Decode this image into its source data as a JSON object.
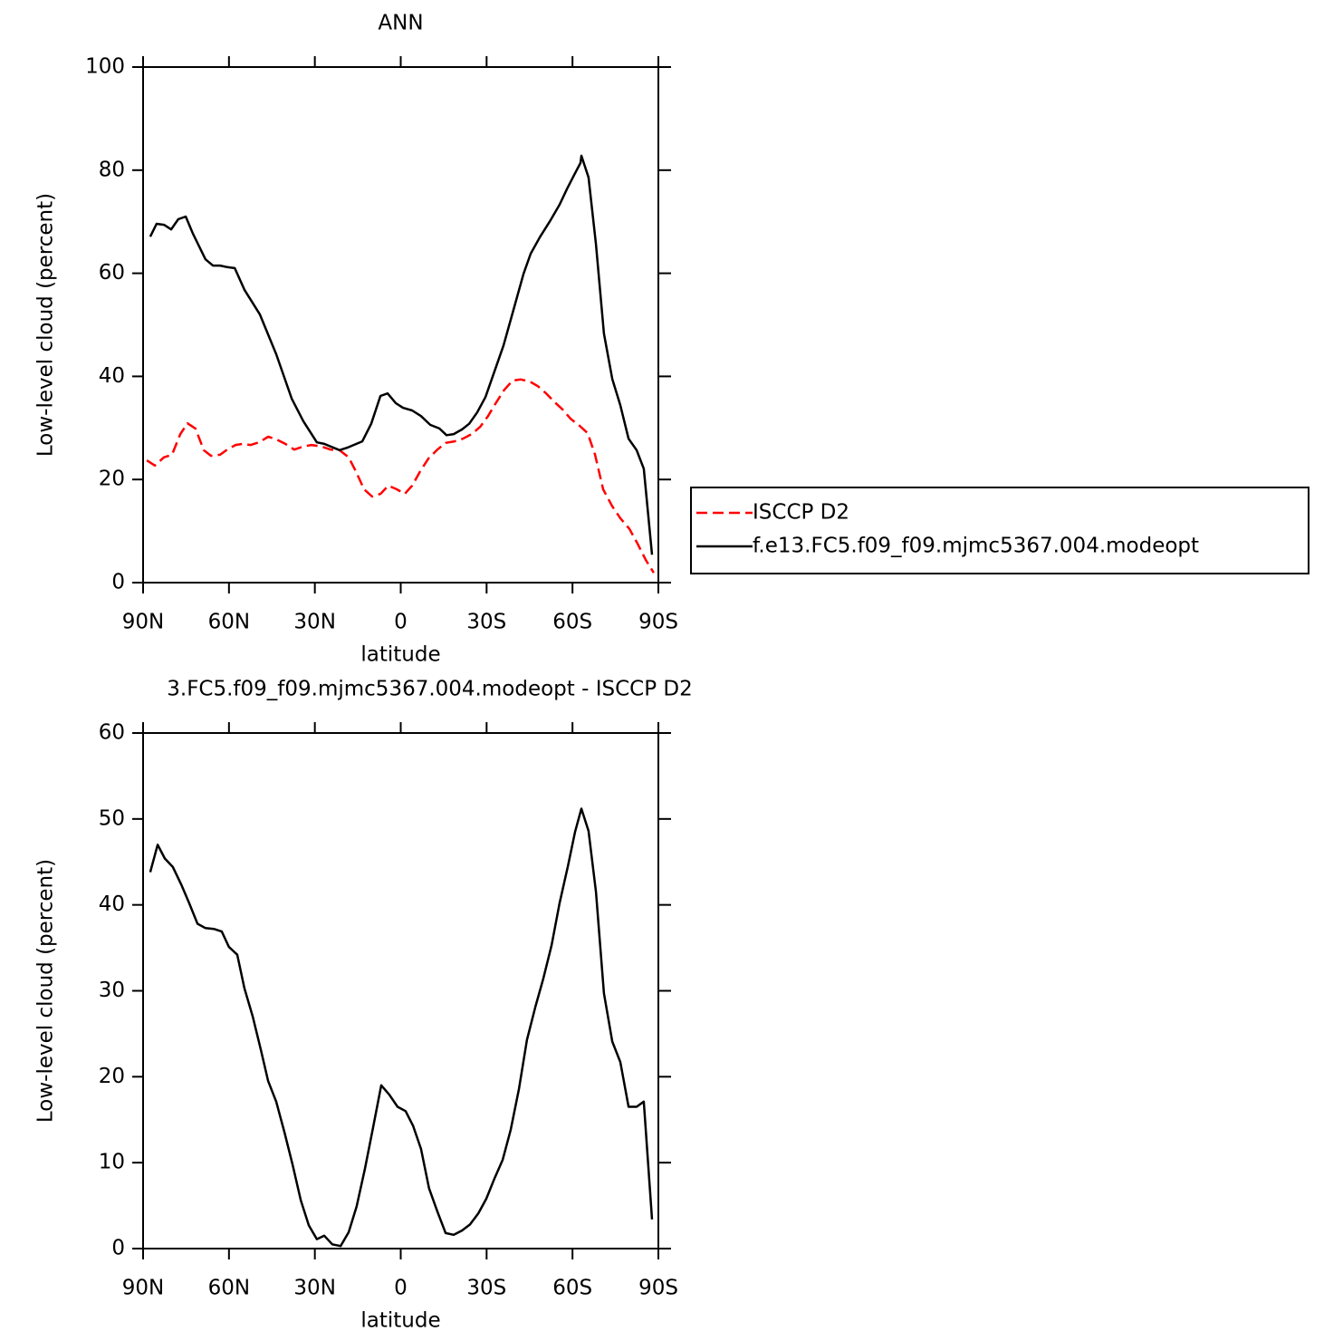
{
  "chart_data": [
    {
      "type": "line",
      "title": "ANN",
      "xlabel": "latitude",
      "ylabel": "Low-level cloud (percent)",
      "xlim": [
        90,
        -90
      ],
      "xticks": [
        {
          "value": 90,
          "label": "90N"
        },
        {
          "value": 60,
          "label": "60N"
        },
        {
          "value": 30,
          "label": "30N"
        },
        0,
        {
          "value": -30,
          "label": "30S"
        },
        {
          "value": -60,
          "label": "60S"
        },
        {
          "value": -90,
          "label": "90S"
        }
      ],
      "ylim": [
        0,
        100
      ],
      "yticks": [
        0,
        20,
        40,
        60,
        80,
        100
      ],
      "legend": "right",
      "series": [
        {
          "name": "ISCCP D2",
          "color": "#ff0000",
          "line_style": "dashed",
          "x": [
            88.7,
            85.9,
            82.7,
            79.9,
            77.0,
            74.5,
            71.7,
            68.8,
            66.3,
            63.1,
            60.6,
            57.7,
            55.2,
            52.4,
            49.5,
            46.3,
            43.5,
            40.3,
            37.2,
            34.0,
            31.2,
            27.7,
            24.5,
            21.4,
            18.2,
            15.7,
            12.8,
            10.0,
            7.1,
            4.3,
            1.4,
            -1.4,
            -4.0,
            -6.8,
            -9.7,
            -12.8,
            -15.7,
            -18.8,
            -21.7,
            -24.8,
            -27.7,
            -30.5,
            -33.4,
            -36.2,
            -39.1,
            -41.9,
            -45.1,
            -47.9,
            -50.8,
            -53.6,
            -56.5,
            -59.3,
            -62.5,
            -65.3,
            -67.9,
            -70.7,
            -73.9,
            -76.7,
            -79.9,
            -82.7,
            -85.6,
            -88.4
          ],
          "values": [
            23.7,
            22.7,
            24.3,
            24.8,
            28.8,
            30.9,
            29.9,
            25.7,
            24.6,
            24.8,
            25.8,
            26.7,
            26.9,
            26.7,
            27.2,
            28.3,
            27.8,
            26.9,
            25.8,
            26.4,
            26.7,
            26.4,
            25.8,
            25.7,
            24.3,
            21.6,
            18.1,
            16.7,
            17.2,
            18.8,
            18.1,
            17.2,
            18.8,
            21.6,
            24.1,
            25.8,
            27.1,
            27.4,
            27.9,
            28.8,
            30.2,
            32.3,
            35.0,
            37.4,
            39.2,
            39.4,
            39.0,
            38.1,
            36.7,
            35.1,
            33.6,
            31.8,
            30.4,
            29.0,
            24.8,
            18.1,
            14.8,
            12.5,
            10.4,
            7.6,
            4.4,
            1.9
          ]
        },
        {
          "name": "f.e13.FC5.f09_f09.mjmc5367.004.modeopt",
          "color": "#000000",
          "line_style": "solid",
          "x": [
            87.5,
            85.3,
            82.7,
            80.2,
            77.7,
            75.1,
            72.6,
            68.2,
            65.6,
            63.1,
            60.6,
            58.0,
            54.6,
            49.2,
            43.5,
            38.1,
            34.0,
            29.3,
            26.7,
            21.4,
            18.5,
            13.4,
            10.3,
            7.1,
            4.6,
            1.7,
            -0.8,
            -4.0,
            -7.1,
            -10.3,
            -13.5,
            -16.0,
            -18.5,
            -21.4,
            -23.9,
            -26.7,
            -29.6,
            -32.4,
            -35.9,
            -39.4,
            -42.9,
            -45.4,
            -48.6,
            -52.0,
            -55.5,
            -58.1,
            -60.6,
            -62.8,
            -63.1,
            -65.6,
            -68.2,
            -71.0,
            -73.9,
            -76.7,
            -79.6,
            -82.4,
            -84.9,
            -87.8
          ],
          "values": [
            67.1,
            69.6,
            69.4,
            68.5,
            70.5,
            71.0,
            67.7,
            62.7,
            61.5,
            61.5,
            61.2,
            61.0,
            56.8,
            52.0,
            44.3,
            35.7,
            31.3,
            27.2,
            26.9,
            25.7,
            26.2,
            27.4,
            30.8,
            36.2,
            36.7,
            34.8,
            33.9,
            33.4,
            32.3,
            30.6,
            29.9,
            28.6,
            28.8,
            29.7,
            30.8,
            33.0,
            36.0,
            40.4,
            46.0,
            52.9,
            59.9,
            63.8,
            67.0,
            70.0,
            73.3,
            76.4,
            79.1,
            81.4,
            82.8,
            78.6,
            65.6,
            48.3,
            39.5,
            34.4,
            27.9,
            25.7,
            22.1,
            5.4
          ]
        }
      ]
    },
    {
      "type": "line",
      "title": "3.FC5.f09_f09.mjmc5367.004.modeopt - ISCCP D2",
      "xlabel": "latitude",
      "ylabel": "Low-level cloud (percent)",
      "xlim": [
        90,
        -90
      ],
      "xticks": [
        {
          "value": 90,
          "label": "90N"
        },
        {
          "value": 60,
          "label": "60N"
        },
        {
          "value": 30,
          "label": "30N"
        },
        0,
        {
          "value": -30,
          "label": "30S"
        },
        {
          "value": -60,
          "label": "60S"
        },
        {
          "value": -90,
          "label": "90S"
        }
      ],
      "ylim": [
        0,
        60
      ],
      "yticks": [
        0,
        10,
        20,
        30,
        40,
        50,
        60
      ],
      "color": "#000000",
      "x": [
        87.5,
        84.9,
        82.4,
        79.6,
        76.7,
        73.9,
        71.0,
        68.2,
        65.3,
        62.5,
        60.0,
        57.1,
        54.6,
        51.7,
        48.9,
        46.3,
        43.5,
        40.6,
        37.8,
        34.9,
        32.1,
        29.3,
        26.7,
        23.9,
        21.0,
        18.2,
        15.4,
        12.5,
        9.7,
        6.8,
        4.0,
        1.1,
        -1.7,
        -4.3,
        -7.1,
        -9.9,
        -12.8,
        -15.7,
        -18.5,
        -21.4,
        -24.2,
        -27.1,
        -29.9,
        -32.8,
        -35.6,
        -38.4,
        -41.3,
        -44.1,
        -47.0,
        -49.8,
        -52.7,
        -55.5,
        -58.4,
        -60.9,
        -63.1,
        -65.6,
        -68.2,
        -71.0,
        -73.9,
        -76.7,
        -79.6,
        -82.4,
        -84.9,
        -87.8
      ],
      "values": [
        43.8,
        47.0,
        45.4,
        44.4,
        42.4,
        40.2,
        37.8,
        37.3,
        37.2,
        36.9,
        35.1,
        34.2,
        30.3,
        27.0,
        23.2,
        19.5,
        17.1,
        13.5,
        9.8,
        5.6,
        2.7,
        1.1,
        1.5,
        0.5,
        0.3,
        1.9,
        4.9,
        9.3,
        14.0,
        19.0,
        17.9,
        16.5,
        16.0,
        14.3,
        11.6,
        7.0,
        4.3,
        1.8,
        1.6,
        2.1,
        2.8,
        4.1,
        5.8,
        8.2,
        10.3,
        13.8,
        18.6,
        24.3,
        28.1,
        31.4,
        35.3,
        40.2,
        44.5,
        48.5,
        51.2,
        48.6,
        41.5,
        29.7,
        24.1,
        21.7,
        16.5,
        16.5,
        17.1,
        3.4
      ]
    }
  ]
}
